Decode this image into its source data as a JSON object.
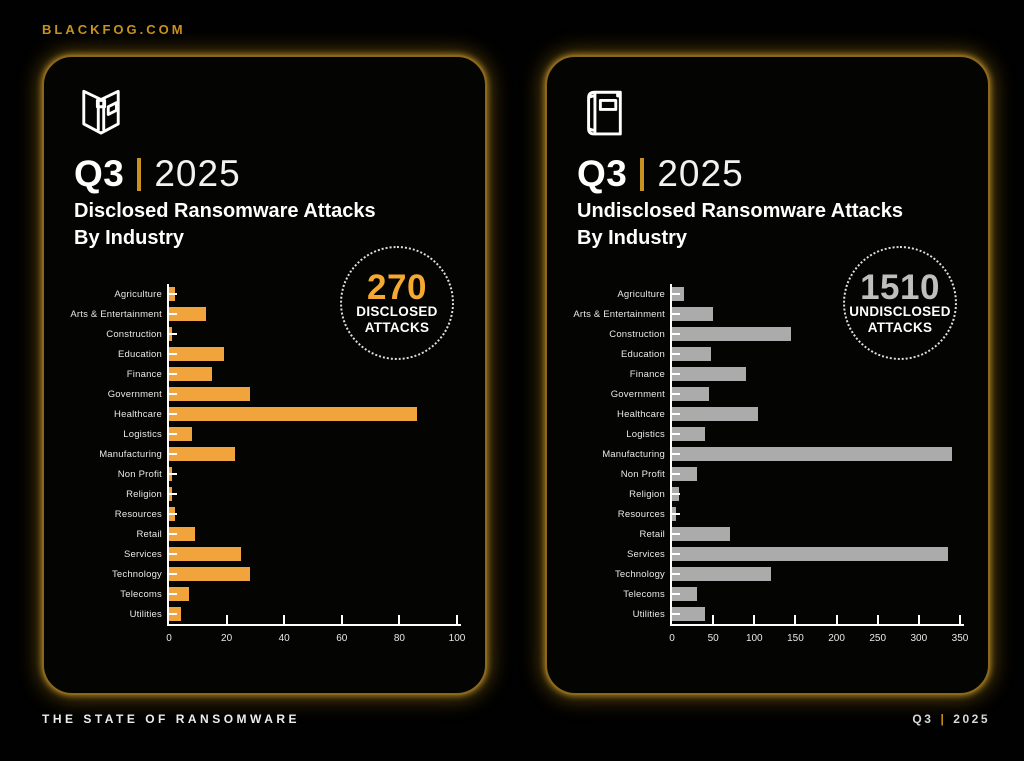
{
  "site_url": "BLACKFOG.COM",
  "footer": {
    "left": "THE STATE OF RANSOMWARE",
    "right_quarter": "Q3",
    "right_separator": "|",
    "right_year": "2025"
  },
  "colors": {
    "accent_gold": "#C8921E",
    "bar_orange": "#F1A43B",
    "bar_gray": "#ABABAB",
    "badge_number_orange": "#F5A930",
    "badge_number_gray": "#BFBFBF",
    "text_white": "#FFFFFF"
  },
  "cards": [
    {
      "quarter": "Q3",
      "year": "2025",
      "subtitle_line1": "Disclosed Ransomware Attacks",
      "subtitle_line2": "By Industry",
      "icon": "open-book-icon",
      "badge": {
        "value": "270",
        "line1": "DISCLOSED",
        "line2": "ATTACKS"
      }
    },
    {
      "quarter": "Q3",
      "year": "2025",
      "subtitle_line1": "Undisclosed Ransomware Attacks",
      "subtitle_line2": "By Industry",
      "icon": "closed-book-icon",
      "badge": {
        "value": "1510",
        "line1": "UNDISCLOSED",
        "line2": "ATTACKS"
      }
    }
  ],
  "chart_data": [
    {
      "type": "bar",
      "orientation": "horizontal",
      "title": "Q3 2025 Disclosed Ransomware Attacks By Industry",
      "total_attacks": 270,
      "categories": [
        "Agriculture",
        "Arts & Entertainment",
        "Construction",
        "Education",
        "Finance",
        "Government",
        "Healthcare",
        "Logistics",
        "Manufacturing",
        "Non Profit",
        "Religion",
        "Resources",
        "Retail",
        "Services",
        "Technology",
        "Telecoms",
        "Utilities"
      ],
      "values": [
        2,
        13,
        1,
        19,
        15,
        28,
        86,
        8,
        23,
        1,
        1,
        2,
        9,
        25,
        28,
        7,
        4
      ],
      "xlim": [
        0,
        100
      ],
      "x_ticks": [
        0,
        20,
        40,
        60,
        80,
        100
      ],
      "bar_color": "#F1A43B",
      "grid": false,
      "legend": "none"
    },
    {
      "type": "bar",
      "orientation": "horizontal",
      "title": "Q3 2025 Undisclosed Ransomware Attacks By Industry",
      "total_attacks": 1510,
      "categories": [
        "Agriculture",
        "Arts & Entertainment",
        "Construction",
        "Education",
        "Finance",
        "Government",
        "Healthcare",
        "Logistics",
        "Manufacturing",
        "Non Profit",
        "Religion",
        "Resources",
        "Retail",
        "Services",
        "Technology",
        "Telecoms",
        "Utilities"
      ],
      "values": [
        15,
        50,
        145,
        48,
        90,
        45,
        105,
        40,
        340,
        30,
        8,
        5,
        70,
        335,
        120,
        30,
        40
      ],
      "xlim": [
        0,
        350
      ],
      "x_ticks": [
        0,
        50,
        100,
        150,
        200,
        250,
        300,
        350
      ],
      "bar_color": "#ABABAB",
      "grid": false,
      "legend": "none"
    }
  ]
}
